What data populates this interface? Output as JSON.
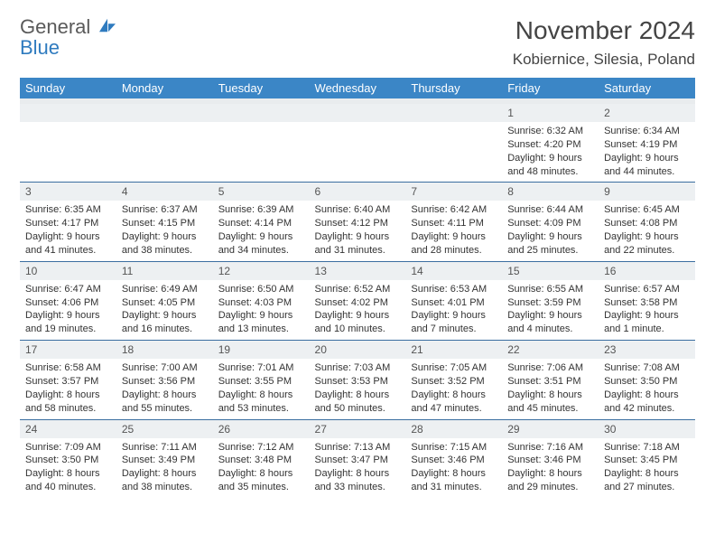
{
  "brand": {
    "line1": "General",
    "line2": "Blue",
    "color_gray": "#5a5a5a",
    "color_blue": "#2f7bbf"
  },
  "title": "November 2024",
  "location": "Kobiernice, Silesia, Poland",
  "header_bg": "#3b86c6",
  "header_text": "#ffffff",
  "daynum_bg": "#edf0f2",
  "row_border": "#3b6ea0",
  "weekdays": [
    "Sunday",
    "Monday",
    "Tuesday",
    "Wednesday",
    "Thursday",
    "Friday",
    "Saturday"
  ],
  "weeks": [
    [
      null,
      null,
      null,
      null,
      null,
      {
        "n": "1",
        "sunrise": "6:32 AM",
        "sunset": "4:20 PM",
        "daylight": "9 hours and 48 minutes."
      },
      {
        "n": "2",
        "sunrise": "6:34 AM",
        "sunset": "4:19 PM",
        "daylight": "9 hours and 44 minutes."
      }
    ],
    [
      {
        "n": "3",
        "sunrise": "6:35 AM",
        "sunset": "4:17 PM",
        "daylight": "9 hours and 41 minutes."
      },
      {
        "n": "4",
        "sunrise": "6:37 AM",
        "sunset": "4:15 PM",
        "daylight": "9 hours and 38 minutes."
      },
      {
        "n": "5",
        "sunrise": "6:39 AM",
        "sunset": "4:14 PM",
        "daylight": "9 hours and 34 minutes."
      },
      {
        "n": "6",
        "sunrise": "6:40 AM",
        "sunset": "4:12 PM",
        "daylight": "9 hours and 31 minutes."
      },
      {
        "n": "7",
        "sunrise": "6:42 AM",
        "sunset": "4:11 PM",
        "daylight": "9 hours and 28 minutes."
      },
      {
        "n": "8",
        "sunrise": "6:44 AM",
        "sunset": "4:09 PM",
        "daylight": "9 hours and 25 minutes."
      },
      {
        "n": "9",
        "sunrise": "6:45 AM",
        "sunset": "4:08 PM",
        "daylight": "9 hours and 22 minutes."
      }
    ],
    [
      {
        "n": "10",
        "sunrise": "6:47 AM",
        "sunset": "4:06 PM",
        "daylight": "9 hours and 19 minutes."
      },
      {
        "n": "11",
        "sunrise": "6:49 AM",
        "sunset": "4:05 PM",
        "daylight": "9 hours and 16 minutes."
      },
      {
        "n": "12",
        "sunrise": "6:50 AM",
        "sunset": "4:03 PM",
        "daylight": "9 hours and 13 minutes."
      },
      {
        "n": "13",
        "sunrise": "6:52 AM",
        "sunset": "4:02 PM",
        "daylight": "9 hours and 10 minutes."
      },
      {
        "n": "14",
        "sunrise": "6:53 AM",
        "sunset": "4:01 PM",
        "daylight": "9 hours and 7 minutes."
      },
      {
        "n": "15",
        "sunrise": "6:55 AM",
        "sunset": "3:59 PM",
        "daylight": "9 hours and 4 minutes."
      },
      {
        "n": "16",
        "sunrise": "6:57 AM",
        "sunset": "3:58 PM",
        "daylight": "9 hours and 1 minute."
      }
    ],
    [
      {
        "n": "17",
        "sunrise": "6:58 AM",
        "sunset": "3:57 PM",
        "daylight": "8 hours and 58 minutes."
      },
      {
        "n": "18",
        "sunrise": "7:00 AM",
        "sunset": "3:56 PM",
        "daylight": "8 hours and 55 minutes."
      },
      {
        "n": "19",
        "sunrise": "7:01 AM",
        "sunset": "3:55 PM",
        "daylight": "8 hours and 53 minutes."
      },
      {
        "n": "20",
        "sunrise": "7:03 AM",
        "sunset": "3:53 PM",
        "daylight": "8 hours and 50 minutes."
      },
      {
        "n": "21",
        "sunrise": "7:05 AM",
        "sunset": "3:52 PM",
        "daylight": "8 hours and 47 minutes."
      },
      {
        "n": "22",
        "sunrise": "7:06 AM",
        "sunset": "3:51 PM",
        "daylight": "8 hours and 45 minutes."
      },
      {
        "n": "23",
        "sunrise": "7:08 AM",
        "sunset": "3:50 PM",
        "daylight": "8 hours and 42 minutes."
      }
    ],
    [
      {
        "n": "24",
        "sunrise": "7:09 AM",
        "sunset": "3:50 PM",
        "daylight": "8 hours and 40 minutes."
      },
      {
        "n": "25",
        "sunrise": "7:11 AM",
        "sunset": "3:49 PM",
        "daylight": "8 hours and 38 minutes."
      },
      {
        "n": "26",
        "sunrise": "7:12 AM",
        "sunset": "3:48 PM",
        "daylight": "8 hours and 35 minutes."
      },
      {
        "n": "27",
        "sunrise": "7:13 AM",
        "sunset": "3:47 PM",
        "daylight": "8 hours and 33 minutes."
      },
      {
        "n": "28",
        "sunrise": "7:15 AM",
        "sunset": "3:46 PM",
        "daylight": "8 hours and 31 minutes."
      },
      {
        "n": "29",
        "sunrise": "7:16 AM",
        "sunset": "3:46 PM",
        "daylight": "8 hours and 29 minutes."
      },
      {
        "n": "30",
        "sunrise": "7:18 AM",
        "sunset": "3:45 PM",
        "daylight": "8 hours and 27 minutes."
      }
    ]
  ],
  "labels": {
    "sunrise": "Sunrise:",
    "sunset": "Sunset:",
    "daylight": "Daylight:"
  }
}
